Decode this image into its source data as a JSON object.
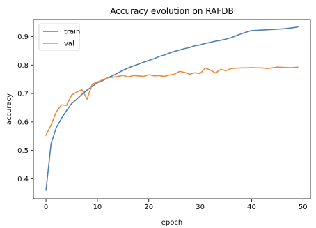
{
  "chart_data": {
    "type": "line",
    "title": "Accuracy evolution on RAFDB",
    "xlabel": "epoch",
    "ylabel": "accuracy",
    "xlim": [
      -2.45,
      51.45
    ],
    "ylim": [
      0.33,
      0.96
    ],
    "xticks": [
      0,
      10,
      20,
      30,
      40,
      50
    ],
    "yticks": [
      0.4,
      0.5,
      0.6,
      0.7,
      0.8,
      0.9
    ],
    "ytick_labels": [
      "0.4",
      "0.5",
      "0.6",
      "0.7",
      "0.8",
      "0.9"
    ],
    "grid": false,
    "legend_position": "upper left",
    "x": [
      0,
      1,
      2,
      3,
      4,
      5,
      6,
      7,
      8,
      9,
      10,
      11,
      12,
      13,
      14,
      15,
      16,
      17,
      18,
      19,
      20,
      21,
      22,
      23,
      24,
      25,
      26,
      27,
      28,
      29,
      30,
      31,
      32,
      33,
      34,
      35,
      36,
      37,
      38,
      39,
      40,
      41,
      42,
      43,
      44,
      45,
      46,
      47,
      48,
      49
    ],
    "series": [
      {
        "name": "train",
        "color": "#4c7fb4",
        "values": [
          0.36,
          0.525,
          0.58,
          0.612,
          0.64,
          0.665,
          0.68,
          0.697,
          0.712,
          0.725,
          0.738,
          0.745,
          0.755,
          0.763,
          0.772,
          0.782,
          0.79,
          0.797,
          0.803,
          0.81,
          0.816,
          0.822,
          0.83,
          0.835,
          0.842,
          0.848,
          0.853,
          0.858,
          0.862,
          0.868,
          0.871,
          0.876,
          0.88,
          0.884,
          0.887,
          0.891,
          0.896,
          0.903,
          0.91,
          0.916,
          0.921,
          0.922,
          0.923,
          0.924,
          0.925,
          0.926,
          0.927,
          0.929,
          0.931,
          0.934
        ]
      },
      {
        "name": "val",
        "color": "#ef8836",
        "values": [
          0.553,
          0.59,
          0.635,
          0.66,
          0.658,
          0.695,
          0.705,
          0.713,
          0.68,
          0.733,
          0.74,
          0.748,
          0.755,
          0.757,
          0.76,
          0.764,
          0.758,
          0.763,
          0.762,
          0.76,
          0.766,
          0.762,
          0.763,
          0.76,
          0.765,
          0.768,
          0.778,
          0.774,
          0.768,
          0.773,
          0.77,
          0.79,
          0.782,
          0.772,
          0.785,
          0.78,
          0.788,
          0.789,
          0.79,
          0.79,
          0.791,
          0.79,
          0.79,
          0.788,
          0.79,
          0.793,
          0.792,
          0.791,
          0.791,
          0.793
        ]
      }
    ]
  }
}
